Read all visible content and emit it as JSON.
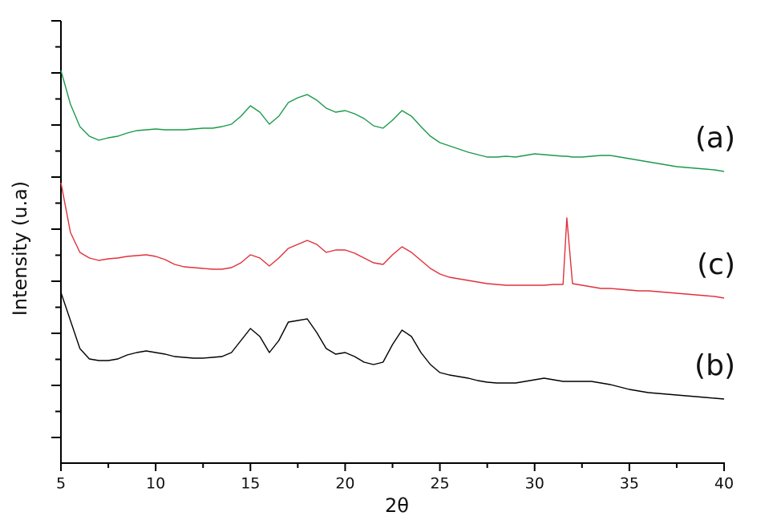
{
  "chart_data": {
    "type": "line",
    "x_label": "2θ",
    "y_label": "Intensity (u.a)",
    "xlim": [
      5,
      40
    ],
    "xticks": [
      5,
      10,
      15,
      20,
      25,
      30,
      35,
      40
    ],
    "x_minor_ticks": [
      7.5,
      12.5,
      17.5,
      22.5,
      27.5,
      32.5,
      37.5
    ],
    "ylim": [
      -32,
      520
    ],
    "yticks": [
      0,
      32.5,
      65,
      97.5,
      130,
      162.5,
      195,
      227.5,
      260,
      292.5,
      325,
      357.5,
      390,
      422.5,
      455,
      487.5,
      520
    ],
    "x": [
      5,
      5.5,
      6,
      6.5,
      7,
      7.5,
      8,
      8.5,
      9,
      9.5,
      10,
      10.5,
      11,
      11.5,
      12,
      12.5,
      13,
      13.5,
      14,
      14.5,
      15,
      15.5,
      16,
      16.5,
      17,
      17.5,
      18,
      18.5,
      19,
      19.5,
      20,
      20.5,
      21,
      21.5,
      22,
      22.5,
      23,
      23.5,
      24,
      24.5,
      25,
      25.5,
      26,
      26.5,
      27,
      27.5,
      28,
      28.5,
      29,
      29.5,
      30,
      30.5,
      31,
      31.5,
      31.7,
      32,
      32.5,
      33,
      33.5,
      34,
      34.5,
      35,
      35.5,
      36,
      36.5,
      37,
      37.5,
      38,
      38.5,
      39,
      39.5,
      40
    ],
    "series": [
      {
        "name": "(a)",
        "color": "#1a9a4a",
        "values": [
          458,
          416,
          388,
          376,
          371,
          374,
          376,
          380,
          383,
          384,
          385,
          384,
          384,
          384,
          385,
          386,
          386,
          388,
          391,
          401,
          414,
          406,
          391,
          401,
          418,
          424,
          428,
          421,
          411,
          406,
          408,
          404,
          398,
          389,
          386,
          396,
          408,
          401,
          388,
          376,
          368,
          364,
          360,
          356,
          353,
          350,
          350,
          351,
          350,
          352,
          354,
          353,
          352,
          351,
          351,
          350,
          350,
          351,
          352,
          352,
          350,
          348,
          346,
          344,
          342,
          340,
          338,
          337,
          336,
          335,
          334,
          332
        ]
      },
      {
        "name": "(c)",
        "color": "#e0303a",
        "values": [
          318,
          256,
          231,
          224,
          221,
          223,
          224,
          226,
          227,
          228,
          226,
          222,
          216,
          213,
          212,
          211,
          210,
          210,
          212,
          218,
          228,
          224,
          214,
          224,
          236,
          241,
          246,
          241,
          231,
          234,
          234,
          230,
          224,
          218,
          216,
          228,
          238,
          231,
          221,
          211,
          204,
          200,
          198,
          196,
          194,
          192,
          191,
          190,
          190,
          190,
          190,
          190,
          191,
          191,
          274,
          192,
          190,
          188,
          186,
          186,
          185,
          184,
          183,
          183,
          182,
          181,
          180,
          179,
          178,
          177,
          176,
          174
        ]
      },
      {
        "name": "(b)",
        "color": "#000000",
        "values": [
          181,
          146,
          111,
          98,
          96,
          96,
          98,
          103,
          106,
          108,
          106,
          104,
          101,
          100,
          99,
          99,
          100,
          101,
          106,
          121,
          136,
          126,
          106,
          121,
          144,
          146,
          148,
          131,
          111,
          104,
          106,
          101,
          94,
          91,
          94,
          116,
          134,
          126,
          106,
          91,
          81,
          78,
          76,
          74,
          71,
          69,
          68,
          68,
          68,
          70,
          72,
          74,
          72,
          70,
          70,
          70,
          70,
          70,
          68,
          66,
          63,
          60,
          58,
          56,
          55,
          54,
          53,
          52,
          51,
          50,
          49,
          48
        ]
      }
    ]
  }
}
